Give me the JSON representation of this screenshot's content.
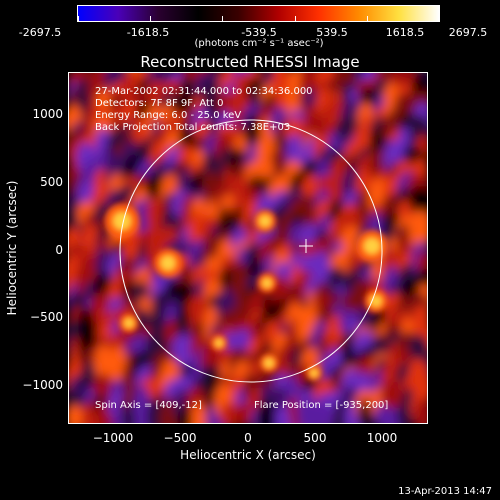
{
  "colorbar": {
    "tick_labels": [
      "-2697.5",
      "-1618.5",
      "-539.5",
      "539.5",
      "1618.5",
      "2697.5"
    ],
    "units": "(photons cm⁻² s⁻¹ asec⁻²)",
    "colormap": [
      "#0000ff",
      "#4a00b8",
      "#2a0030",
      "#000000",
      "#3a0000",
      "#b00000",
      "#ff3000",
      "#ff8a00",
      "#ffe040",
      "#ffffff"
    ]
  },
  "image": {
    "title": "Reconstructed RHESSI Image",
    "info": {
      "time_range": "27-Mar-2002 02:31:44.000 to 02:34:36.000",
      "detectors": "Detectors: 7F 8F 9F, Att 0",
      "energy_range": "Energy Range: 6.0 - 25.0 keV",
      "method": "Back Projection",
      "total_counts": "Total counts: 7.38E+03"
    },
    "spin_axis": "Spin Axis = [409,-12]",
    "flare_position": "Flare Position = [-935,200]"
  },
  "axes": {
    "x_title": "Heliocentric X (arcsec)",
    "y_title": "Heliocentric Y (arcsec)",
    "x_ticks": [
      {
        "value": -1000,
        "label": "−1000"
      },
      {
        "value": -500,
        "label": "−500"
      },
      {
        "value": 0,
        "label": "0"
      },
      {
        "value": 500,
        "label": "500"
      },
      {
        "value": 1000,
        "label": "1000"
      }
    ],
    "y_ticks": [
      {
        "value": 1000,
        "label": "1000"
      },
      {
        "value": 500,
        "label": "500"
      },
      {
        "value": 0,
        "label": "0"
      },
      {
        "value": -500,
        "label": "−500"
      },
      {
        "value": -1000,
        "label": "−1000"
      }
    ]
  },
  "footer": {
    "date_stamp": "13-Apr-2013 14:47"
  }
}
